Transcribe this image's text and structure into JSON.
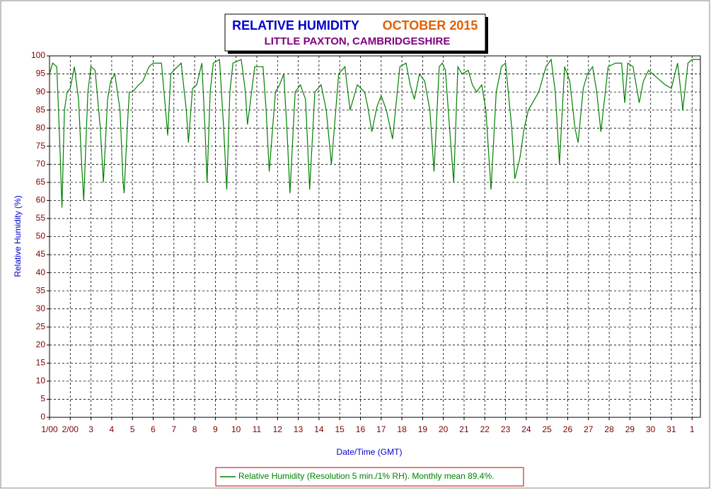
{
  "chart_data": {
    "type": "line",
    "title": "RELATIVE HUMIDITY",
    "title_date": "OCTOBER 2015",
    "subtitle": "LITTLE PAXTON, CAMBRIDGESHIRE",
    "x_label": "Date/Time (GMT)",
    "y_label": "Relative Humidity (%)",
    "x": [
      0,
      0.15,
      0.35,
      0.5,
      0.6,
      0.72,
      0.85,
      1.0,
      1.2,
      1.4,
      1.55,
      1.65,
      1.85,
      2.0,
      2.2,
      2.45,
      2.6,
      2.8,
      2.95,
      3.15,
      3.4,
      3.55,
      3.6,
      3.75,
      3.85,
      4.0,
      4.3,
      4.5,
      4.8,
      5.0,
      5.4,
      5.6,
      5.7,
      5.85,
      6.0,
      6.35,
      6.6,
      6.7,
      6.9,
      7.1,
      7.35,
      7.5,
      7.6,
      7.75,
      7.9,
      8.2,
      8.4,
      8.55,
      8.7,
      8.85,
      9.25,
      9.45,
      9.55,
      9.9,
      10.3,
      10.45,
      10.6,
      10.9,
      11.1,
      11.3,
      11.45,
      11.6,
      11.85,
      12.1,
      12.35,
      12.55,
      12.8,
      13.1,
      13.35,
      13.6,
      13.95,
      14.25,
      14.5,
      14.85,
      15.2,
      15.35,
      15.55,
      15.8,
      16.0,
      16.25,
      16.55,
      16.9,
      17.2,
      17.4,
      17.6,
      17.85,
      18.1,
      18.35,
      18.55,
      18.8,
      18.95,
      19.1,
      19.3,
      19.5,
      19.7,
      19.9,
      20.2,
      20.4,
      20.6,
      20.85,
      21.05,
      21.3,
      21.55,
      21.8,
      22.0,
      22.3,
      22.45,
      22.7,
      22.9,
      23.1,
      23.3,
      23.6,
      23.95,
      24.2,
      24.4,
      24.6,
      24.85,
      25.1,
      25.35,
      25.5,
      25.75,
      25.95,
      26.2,
      26.4,
      26.6,
      26.95,
      27.3,
      27.6,
      27.75,
      27.9,
      28.15,
      28.45,
      28.65,
      28.9,
      29.3,
      29.7,
      30.0,
      30.3,
      30.5,
      30.55,
      30.8,
      31.0,
      31.4
    ],
    "series": [
      {
        "name": "Relative Humidity (Resolution 5 min./1% RH). Monthly mean 89.4%.",
        "color": "#008000",
        "values": [
          95,
          98,
          97,
          75,
          58,
          85,
          90,
          91,
          97,
          88,
          70,
          60,
          90,
          97,
          96,
          80,
          65,
          88,
          93,
          95,
          85,
          65,
          62,
          80,
          90,
          90,
          92,
          93,
          97,
          98,
          98,
          85,
          78,
          95,
          96,
          98,
          85,
          76,
          91,
          92,
          98,
          80,
          65,
          90,
          98,
          99,
          80,
          63,
          90,
          98,
          99,
          90,
          81,
          97,
          97,
          85,
          68,
          90,
          92,
          95,
          80,
          62,
          90,
          92,
          88,
          63,
          90,
          92,
          85,
          70,
          95,
          97,
          85,
          92,
          90,
          86,
          79,
          86,
          89,
          85,
          77,
          97,
          98,
          92,
          88,
          95,
          93,
          85,
          68,
          97,
          98,
          96,
          80,
          65,
          97,
          95,
          96,
          92,
          90,
          92,
          85,
          63,
          90,
          97,
          98,
          80,
          66,
          72,
          80,
          85,
          87,
          90,
          97,
          99,
          90,
          70,
          97,
          93,
          80,
          76,
          91,
          95,
          97,
          90,
          79,
          97,
          98,
          98,
          87,
          98,
          97,
          87,
          93,
          96,
          94,
          92,
          91,
          98,
          88,
          85,
          98,
          99,
          99
        ]
      }
    ],
    "xlim": [
      0,
      31.4
    ],
    "ylim": [
      0,
      100
    ],
    "xticks": [
      {
        "value": 0,
        "label": "1/00"
      },
      {
        "value": 1,
        "label": "2/00"
      },
      {
        "value": 2,
        "label": "3"
      },
      {
        "value": 3,
        "label": "4"
      },
      {
        "value": 4,
        "label": "5"
      },
      {
        "value": 5,
        "label": "6"
      },
      {
        "value": 6,
        "label": "7"
      },
      {
        "value": 7,
        "label": "8"
      },
      {
        "value": 8,
        "label": "9"
      },
      {
        "value": 9,
        "label": "10"
      },
      {
        "value": 10,
        "label": "11"
      },
      {
        "value": 11,
        "label": "12"
      },
      {
        "value": 12,
        "label": "13"
      },
      {
        "value": 13,
        "label": "14"
      },
      {
        "value": 14,
        "label": "15"
      },
      {
        "value": 15,
        "label": "16"
      },
      {
        "value": 16,
        "label": "17"
      },
      {
        "value": 17,
        "label": "18"
      },
      {
        "value": 18,
        "label": "19"
      },
      {
        "value": 19,
        "label": "20"
      },
      {
        "value": 20,
        "label": "21"
      },
      {
        "value": 21,
        "label": "22"
      },
      {
        "value": 22,
        "label": "23"
      },
      {
        "value": 23,
        "label": "24"
      },
      {
        "value": 24,
        "label": "25"
      },
      {
        "value": 25,
        "label": "26"
      },
      {
        "value": 26,
        "label": "27"
      },
      {
        "value": 27,
        "label": "28"
      },
      {
        "value": 28,
        "label": "29"
      },
      {
        "value": 29,
        "label": "30"
      },
      {
        "value": 30,
        "label": "31"
      },
      {
        "value": 31,
        "label": "1"
      }
    ],
    "yticks": [
      0,
      5,
      10,
      15,
      20,
      25,
      30,
      35,
      40,
      45,
      50,
      55,
      60,
      65,
      70,
      75,
      80,
      85,
      90,
      95,
      100
    ],
    "grid": true
  }
}
